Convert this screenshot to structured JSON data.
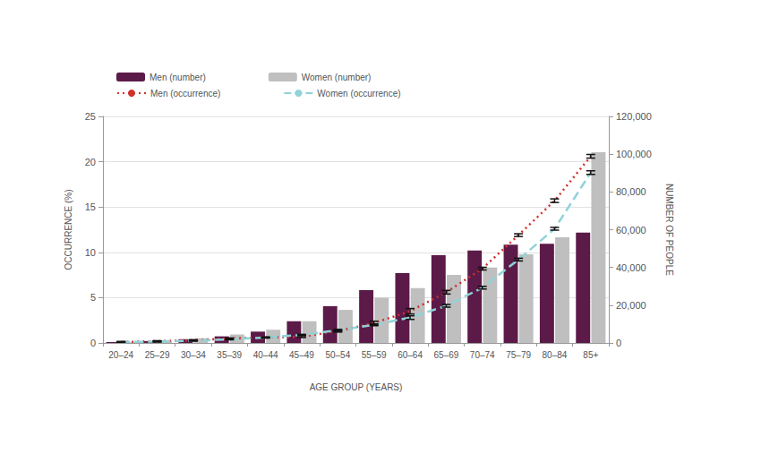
{
  "chart_data": {
    "type": "bar",
    "categories": [
      "20–24",
      "25–29",
      "30–34",
      "35–39",
      "40–44",
      "45–49",
      "50–54",
      "55–59",
      "60–64",
      "65–69",
      "70–74",
      "75–79",
      "80–84",
      "85+"
    ],
    "xlabel": "AGE GROUP (YEARS)",
    "ylabel": "OCCURRENCE (%)",
    "y2label": "NUMBER OF PEOPLE",
    "ylim": [
      0,
      25
    ],
    "yticks": [
      0,
      5,
      10,
      15,
      20,
      25
    ],
    "y2lim": [
      0,
      120000
    ],
    "y2ticks": [
      0,
      {
        "value": 20000,
        "label": "20,000"
      },
      {
        "value": 40000,
        "label": "40,000"
      },
      {
        "value": 60000,
        "label": "60,000"
      },
      {
        "value": 80000,
        "label": "80,000"
      },
      {
        "value": 100000,
        "label": "100,000"
      },
      {
        "value": 120000,
        "label": "120,000"
      }
    ],
    "grid": true,
    "legend": "top left",
    "series": [
      {
        "name": "Men (number)",
        "type": "bar",
        "axis": "y2",
        "color": "#5c1a48",
        "values": [
          500,
          1000,
          2000,
          3500,
          6000,
          11500,
          19500,
          28000,
          37000,
          46500,
          49000,
          52000,
          52500,
          58500
        ]
      },
      {
        "name": "Women (number)",
        "type": "bar",
        "axis": "y2",
        "color": "#bfbfbf",
        "values": [
          300,
          900,
          2500,
          4500,
          7000,
          11500,
          17500,
          24000,
          29000,
          36000,
          40000,
          47000,
          56000,
          101000
        ]
      },
      {
        "name": "Men (occurrence)",
        "type": "line",
        "color": "#d0312d",
        "line_style": "dotted",
        "marker": "none",
        "values": [
          0.1,
          0.2,
          0.3,
          0.5,
          0.6,
          0.7,
          1.3,
          2.2,
          3.5,
          5.6,
          8.2,
          11.9,
          15.7,
          20.6
        ],
        "errors": [
          0.05,
          0.05,
          0.05,
          0.05,
          0.05,
          0.1,
          0.1,
          0.2,
          0.3,
          0.2,
          0.15,
          0.15,
          0.2,
          0.2
        ]
      },
      {
        "name": "Women (occurrence)",
        "type": "line",
        "color": "#8fd3d8",
        "line_style": "dashed",
        "marker": "none",
        "values": [
          0.1,
          0.15,
          0.25,
          0.4,
          0.6,
          0.9,
          1.4,
          2.0,
          2.8,
          4.1,
          6.1,
          9.2,
          12.6,
          18.8
        ],
        "errors": [
          0.05,
          0.05,
          0.05,
          0.05,
          0.05,
          0.05,
          0.1,
          0.1,
          0.2,
          0.15,
          0.15,
          0.15,
          0.15,
          0.2
        ]
      }
    ]
  }
}
